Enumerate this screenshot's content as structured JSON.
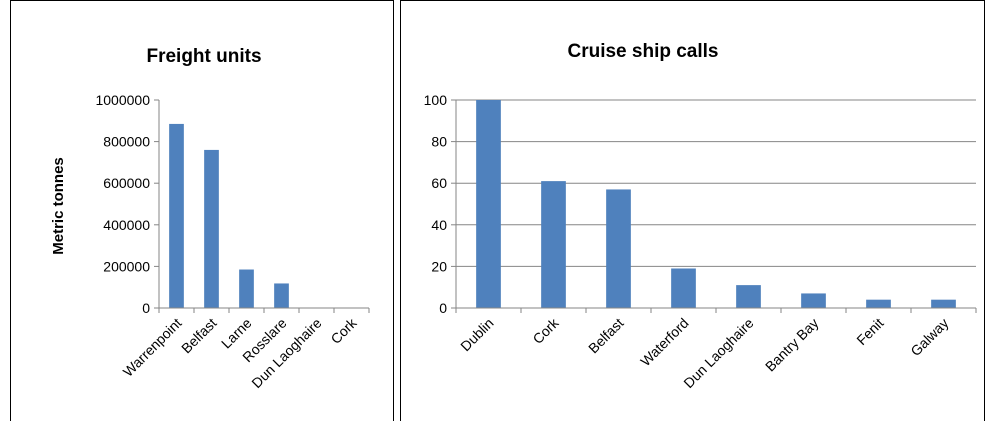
{
  "chart_data": [
    {
      "type": "bar",
      "title": "Freight units",
      "xlabel": "",
      "ylabel": "Metric  tonnes",
      "categories": [
        "Warrenpoint",
        "Belfast",
        "Larne",
        "Rosslare",
        "Dun Laoghaire",
        "Cork"
      ],
      "values": [
        885000,
        760000,
        185000,
        118000,
        0,
        0
      ],
      "ylim": [
        0,
        1000000
      ],
      "yticks": [
        "0",
        "200000",
        "400000",
        "600000",
        "800000",
        "1000000"
      ],
      "grid": false,
      "bar_color": "#4F81BD"
    },
    {
      "type": "bar",
      "title": "Cruise ship calls",
      "xlabel": "",
      "ylabel": "",
      "categories": [
        "Dublin",
        "Cork",
        "Belfast",
        "Waterford",
        "Dun Laoghaire",
        "Bantry Bay",
        "Fenit",
        "Galway"
      ],
      "values": [
        100,
        61,
        57,
        19,
        11,
        7,
        4,
        4
      ],
      "ylim": [
        0,
        100
      ],
      "yticks": [
        "0",
        "20",
        "40",
        "60",
        "80",
        "100"
      ],
      "grid": true,
      "bar_color": "#4F81BD"
    }
  ]
}
